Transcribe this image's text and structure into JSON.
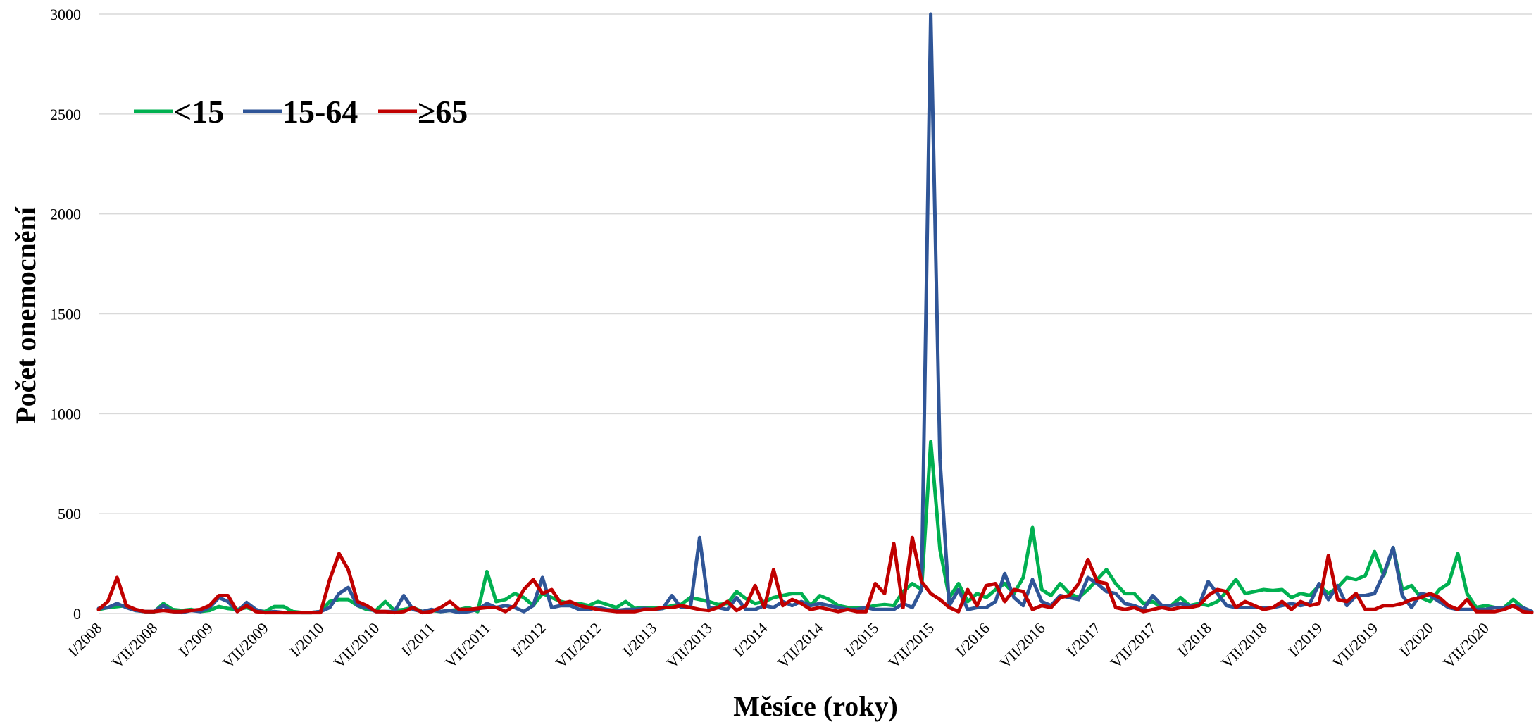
{
  "chart_data": {
    "type": "line",
    "xlabel": "Měsíce (roky)",
    "ylabel": "Počet onemocnění",
    "ylim": [
      0,
      3000
    ],
    "yticks": [
      0,
      500,
      1000,
      1500,
      2000,
      2500,
      3000
    ],
    "grid": true,
    "legend_position": "top-left",
    "x": [
      "I/2008",
      "II/2008",
      "III/2008",
      "IV/2008",
      "V/2008",
      "VI/2008",
      "VII/2008",
      "VIII/2008",
      "IX/2008",
      "X/2008",
      "XI/2008",
      "XII/2008",
      "I/2009",
      "II/2009",
      "III/2009",
      "IV/2009",
      "V/2009",
      "VI/2009",
      "VII/2009",
      "VIII/2009",
      "IX/2009",
      "X/2009",
      "XI/2009",
      "XII/2009",
      "I/2010",
      "II/2010",
      "III/2010",
      "IV/2010",
      "V/2010",
      "VI/2010",
      "VII/2010",
      "VIII/2010",
      "IX/2010",
      "X/2010",
      "XI/2010",
      "XII/2010",
      "I/2011",
      "II/2011",
      "III/2011",
      "IV/2011",
      "V/2011",
      "VI/2011",
      "VII/2011",
      "VIII/2011",
      "IX/2011",
      "X/2011",
      "XI/2011",
      "XII/2011",
      "I/2012",
      "II/2012",
      "III/2012",
      "IV/2012",
      "V/2012",
      "VI/2012",
      "VII/2012",
      "VIII/2012",
      "IX/2012",
      "X/2012",
      "XI/2012",
      "XII/2012",
      "I/2013",
      "II/2013",
      "III/2013",
      "IV/2013",
      "V/2013",
      "VI/2013",
      "VII/2013",
      "VIII/2013",
      "IX/2013",
      "X/2013",
      "XI/2013",
      "XII/2013",
      "I/2014",
      "II/2014",
      "III/2014",
      "IV/2014",
      "V/2014",
      "VI/2014",
      "VII/2014",
      "VIII/2014",
      "IX/2014",
      "X/2014",
      "XI/2014",
      "XII/2014",
      "I/2015",
      "II/2015",
      "III/2015",
      "IV/2015",
      "V/2015",
      "VI/2015",
      "VII/2015",
      "VIII/2015",
      "IX/2015",
      "X/2015",
      "XI/2015",
      "XII/2015",
      "I/2016",
      "II/2016",
      "III/2016",
      "IV/2016",
      "V/2016",
      "VI/2016",
      "VII/2016",
      "VIII/2016",
      "IX/2016",
      "X/2016",
      "XI/2016",
      "XII/2016",
      "I/2017",
      "II/2017",
      "III/2017",
      "IV/2017",
      "V/2017",
      "VI/2017",
      "VII/2017",
      "VIII/2017",
      "IX/2017",
      "X/2017",
      "XI/2017",
      "XII/2017",
      "I/2018",
      "II/2018",
      "III/2018",
      "IV/2018",
      "V/2018",
      "VI/2018",
      "VII/2018",
      "VIII/2018",
      "IX/2018",
      "X/2018",
      "XI/2018",
      "XII/2018",
      "I/2019",
      "II/2019",
      "III/2019",
      "IV/2019",
      "V/2019",
      "VI/2019",
      "VII/2019",
      "VIII/2019",
      "IX/2019",
      "X/2019",
      "XI/2019",
      "XII/2019",
      "I/2020",
      "II/2020",
      "III/2020",
      "IV/2020",
      "V/2020",
      "VI/2020",
      "VII/2020",
      "VIII/2020",
      "IX/2020",
      "X/2020",
      "XI/2020",
      "XII/2020"
    ],
    "xtick_labels": [
      "I/2008",
      "VII/2008",
      "I/2009",
      "VII/2009",
      "I/2010",
      "VII/2010",
      "I/2011",
      "VII/2011",
      "I/2012",
      "VII/2012",
      "I/2013",
      "VII/2013",
      "I/2014",
      "VII/2014",
      "I/2015",
      "VII/2015",
      "I/2016",
      "VII/2016",
      "I/2017",
      "VII/2017",
      "I/2018",
      "VII/2018",
      "I/2019",
      "VII/2019",
      "I/2020",
      "VII/2020"
    ],
    "series": [
      {
        "name": "<15",
        "color": "#00b050",
        "values": [
          20,
          30,
          35,
          40,
          15,
          10,
          8,
          50,
          20,
          15,
          20,
          10,
          15,
          35,
          25,
          20,
          30,
          15,
          10,
          35,
          35,
          10,
          5,
          5,
          10,
          60,
          70,
          70,
          40,
          20,
          15,
          60,
          15,
          20,
          30,
          10,
          15,
          10,
          15,
          20,
          30,
          10,
          210,
          60,
          70,
          100,
          80,
          40,
          100,
          80,
          60,
          50,
          50,
          40,
          60,
          45,
          30,
          60,
          25,
          30,
          30,
          25,
          40,
          45,
          80,
          70,
          60,
          45,
          50,
          110,
          75,
          50,
          60,
          80,
          90,
          100,
          100,
          40,
          90,
          70,
          40,
          30,
          30,
          30,
          40,
          45,
          40,
          110,
          150,
          120,
          860,
          320,
          80,
          150,
          60,
          100,
          80,
          120,
          150,
          100,
          180,
          430,
          120,
          90,
          150,
          100,
          80,
          120,
          170,
          220,
          150,
          100,
          100,
          50,
          60,
          30,
          40,
          80,
          40,
          50,
          40,
          60,
          110,
          170,
          100,
          110,
          120,
          115,
          120,
          80,
          100,
          90,
          140,
          100,
          130,
          180,
          170,
          190,
          310,
          190,
          330,
          120,
          140,
          80,
          60,
          120,
          150,
          300,
          100,
          30,
          40,
          30,
          30,
          70,
          30,
          10
        ]
      },
      {
        "name": "15-64",
        "color": "#2f5597",
        "values": [
          25,
          30,
          50,
          30,
          15,
          10,
          10,
          40,
          10,
          5,
          15,
          10,
          30,
          80,
          60,
          10,
          55,
          20,
          5,
          10,
          5,
          5,
          5,
          5,
          10,
          30,
          100,
          130,
          40,
          30,
          10,
          10,
          10,
          90,
          20,
          10,
          20,
          10,
          15,
          5,
          10,
          20,
          50,
          30,
          40,
          30,
          10,
          40,
          180,
          30,
          40,
          40,
          20,
          20,
          30,
          20,
          15,
          20,
          20,
          25,
          20,
          25,
          90,
          30,
          30,
          380,
          30,
          30,
          20,
          80,
          20,
          20,
          40,
          30,
          60,
          40,
          60,
          40,
          50,
          40,
          30,
          20,
          20,
          30,
          20,
          20,
          20,
          50,
          30,
          120,
          3000,
          770,
          40,
          120,
          20,
          30,
          30,
          60,
          200,
          80,
          40,
          170,
          60,
          40,
          90,
          80,
          70,
          180,
          150,
          110,
          100,
          50,
          40,
          20,
          90,
          40,
          40,
          50,
          40,
          40,
          160,
          100,
          40,
          30,
          30,
          30,
          30,
          30,
          40,
          50,
          40,
          50,
          150,
          70,
          140,
          40,
          90,
          90,
          100,
          200,
          330,
          90,
          30,
          100,
          90,
          60,
          30,
          20,
          20,
          20,
          20,
          30,
          30,
          40,
          30,
          10
        ]
      },
      {
        "name": "≥65",
        "color": "#c00000",
        "values": [
          20,
          60,
          180,
          40,
          20,
          10,
          10,
          15,
          10,
          10,
          15,
          20,
          40,
          90,
          90,
          10,
          40,
          10,
          5,
          5,
          5,
          5,
          5,
          5,
          5,
          170,
          300,
          220,
          60,
          40,
          10,
          10,
          5,
          10,
          30,
          5,
          10,
          30,
          60,
          20,
          20,
          25,
          30,
          30,
          10,
          40,
          120,
          170,
          100,
          120,
          50,
          60,
          40,
          30,
          20,
          15,
          10,
          10,
          10,
          20,
          20,
          30,
          30,
          40,
          30,
          20,
          15,
          30,
          60,
          15,
          40,
          140,
          30,
          220,
          40,
          70,
          50,
          20,
          30,
          20,
          10,
          20,
          10,
          10,
          150,
          100,
          350,
          30,
          380,
          160,
          100,
          70,
          30,
          10,
          120,
          40,
          140,
          150,
          60,
          120,
          110,
          20,
          40,
          30,
          80,
          90,
          150,
          270,
          160,
          150,
          30,
          20,
          30,
          10,
          20,
          30,
          20,
          30,
          30,
          40,
          90,
          120,
          110,
          30,
          60,
          40,
          20,
          30,
          60,
          20,
          60,
          40,
          50,
          290,
          70,
          60,
          100,
          20,
          20,
          40,
          40,
          50,
          70,
          80,
          100,
          80,
          40,
          20,
          70,
          10,
          10,
          10,
          20,
          40,
          10,
          5
        ]
      }
    ]
  }
}
